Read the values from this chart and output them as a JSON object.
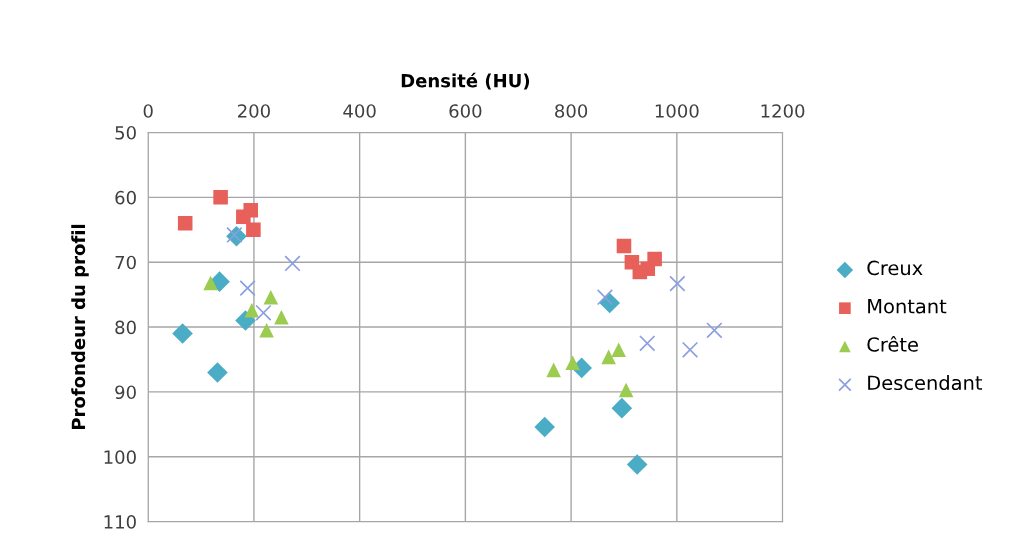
{
  "chart_data": {
    "type": "scatter",
    "xlabel": "Densité (HU)",
    "ylabel": "Profondeur du profil",
    "xlim": [
      0,
      1200
    ],
    "xticks": [
      0,
      200,
      400,
      600,
      800,
      1000,
      1200
    ],
    "ylim": [
      110,
      50
    ],
    "yticks": [
      50,
      60,
      70,
      80,
      90,
      100,
      110
    ],
    "grid": true,
    "legend": "right",
    "series": [
      {
        "name": "Creux",
        "color": "#4bacc6",
        "marker": "diamond",
        "x": [
          65,
          131,
          135,
          184,
          167,
          750,
          820,
          873,
          896,
          925
        ],
        "values": [
          81,
          87,
          73,
          79,
          66,
          95.4,
          86.3,
          76.3,
          92.5,
          101.2
        ]
      },
      {
        "name": "Montant",
        "color": "#e8605a",
        "marker": "square",
        "x": [
          70,
          137,
          180,
          194,
          199,
          900,
          915,
          930,
          945,
          958
        ],
        "values": [
          64,
          60,
          63,
          62,
          65,
          67.5,
          70,
          71.5,
          71,
          69.5
        ]
      },
      {
        "name": "Crête",
        "color": "#9bcb4f",
        "marker": "triangle",
        "x": [
          118,
          232,
          196,
          252,
          224,
          767,
          803,
          871,
          890,
          904
        ],
        "values": [
          73.2,
          75.4,
          77.4,
          78.5,
          80.5,
          86.6,
          85.5,
          84.6,
          83.5,
          89.7
        ]
      },
      {
        "name": "Descendant",
        "color": "#8a9ee0",
        "marker": "cross",
        "x": [
          163,
          273,
          188,
          218,
          864,
          1001,
          944,
          1025,
          1071
        ],
        "values": [
          65.8,
          70.2,
          74,
          77.8,
          75.4,
          73.3,
          82.5,
          83.5,
          80.5
        ]
      }
    ]
  }
}
